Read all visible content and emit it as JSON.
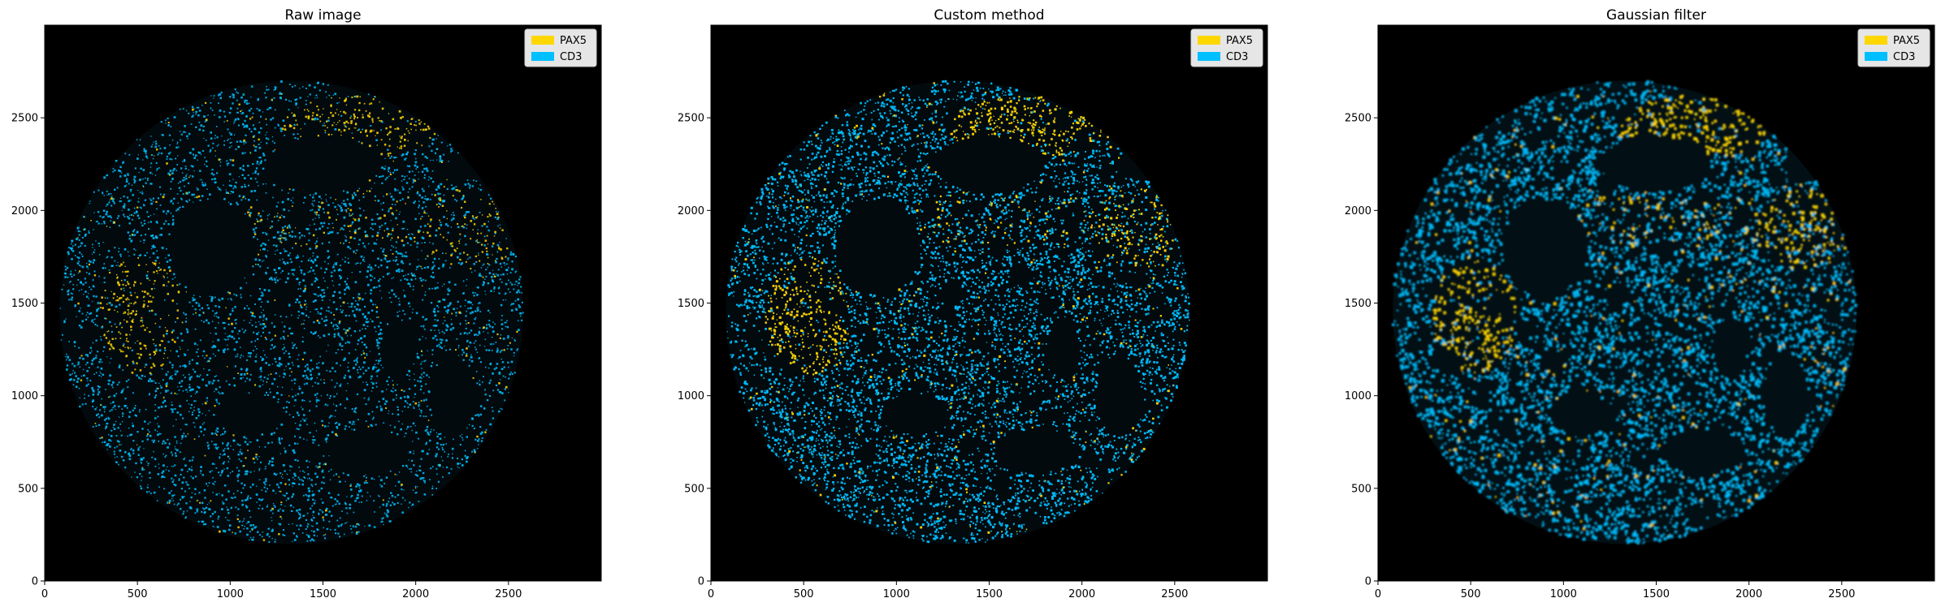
{
  "figure": {
    "panels": [
      {
        "title": "Raw image",
        "style": "raw",
        "legend": [
          {
            "label": "PAX5",
            "color": "#FFD700"
          },
          {
            "label": "CD3",
            "color": "#00BFFF"
          }
        ]
      },
      {
        "title": "Custom method",
        "style": "custom",
        "legend": [
          {
            "label": "PAX5",
            "color": "#FFD700"
          },
          {
            "label": "CD3",
            "color": "#00BFFF"
          }
        ]
      },
      {
        "title": "Gaussian filter",
        "style": "gaussian",
        "legend": [
          {
            "label": "PAX5",
            "color": "#FFD700"
          },
          {
            "label": "CD3",
            "color": "#00BFFF"
          }
        ]
      }
    ],
    "axis": {
      "xlim": [
        0,
        3000
      ],
      "ylim": [
        0,
        3000
      ],
      "xticks": [
        0,
        500,
        1000,
        1500,
        2000,
        2500
      ],
      "yticks": [
        0,
        500,
        1000,
        1500,
        2000,
        2500
      ]
    },
    "colors": {
      "pax5": "#FFD700",
      "cd3": "#00BFFF",
      "background": "#000000"
    }
  }
}
